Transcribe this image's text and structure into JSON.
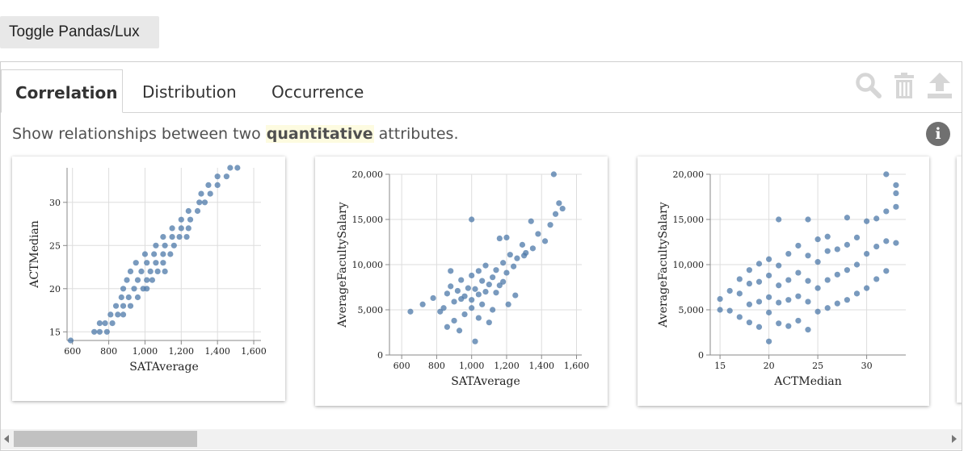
{
  "toggle": {
    "label": "Toggle Pandas/Lux"
  },
  "tabs": [
    {
      "label": "Correlation",
      "active": true
    },
    {
      "label": "Distribution",
      "active": false
    },
    {
      "label": "Occurrence",
      "active": false
    }
  ],
  "toolbar": {
    "icons": [
      "search-icon",
      "trash-icon",
      "export-icon"
    ]
  },
  "description": {
    "before": "Show relationships between two ",
    "highlight": "quantitative",
    "after": " attributes."
  },
  "info": {
    "glyph": "i"
  },
  "colors": {
    "point": "#4c78a8",
    "grid": "#dddddd",
    "axis": "#888888"
  },
  "chart_data": [
    {
      "type": "scatter",
      "xlabel": "SATAverage",
      "ylabel": "ACTMedian",
      "xlim": [
        570,
        1640
      ],
      "ylim": [
        14,
        34
      ],
      "xticks": [
        600,
        800,
        1000,
        1200,
        1400,
        1600
      ],
      "xtick_labels": [
        "600",
        "800",
        "1,000",
        "1,200",
        "1,400",
        "1,600"
      ],
      "yticks": [
        15,
        20,
        25,
        30
      ],
      "ytick_labels": [
        "15",
        "20",
        "25",
        "30"
      ],
      "points": [
        [
          590,
          14
        ],
        [
          720,
          15
        ],
        [
          750,
          15
        ],
        [
          790,
          15
        ],
        [
          750,
          16
        ],
        [
          780,
          16
        ],
        [
          820,
          16
        ],
        [
          810,
          17
        ],
        [
          850,
          17
        ],
        [
          880,
          17
        ],
        [
          840,
          18
        ],
        [
          880,
          18
        ],
        [
          920,
          18
        ],
        [
          870,
          19
        ],
        [
          910,
          19
        ],
        [
          960,
          19
        ],
        [
          880,
          20
        ],
        [
          940,
          20
        ],
        [
          990,
          20
        ],
        [
          1010,
          20
        ],
        [
          900,
          21
        ],
        [
          960,
          21
        ],
        [
          1010,
          21
        ],
        [
          1040,
          21
        ],
        [
          920,
          22
        ],
        [
          980,
          22
        ],
        [
          1030,
          22
        ],
        [
          1070,
          22
        ],
        [
          1110,
          22
        ],
        [
          950,
          23
        ],
        [
          1010,
          23
        ],
        [
          1060,
          23
        ],
        [
          1100,
          23
        ],
        [
          1000,
          24
        ],
        [
          1050,
          24
        ],
        [
          1100,
          24
        ],
        [
          1140,
          24
        ],
        [
          1060,
          25
        ],
        [
          1110,
          25
        ],
        [
          1160,
          25
        ],
        [
          1100,
          26
        ],
        [
          1150,
          26
        ],
        [
          1190,
          26
        ],
        [
          1230,
          26
        ],
        [
          1150,
          27
        ],
        [
          1200,
          27
        ],
        [
          1240,
          27
        ],
        [
          1200,
          28
        ],
        [
          1250,
          28
        ],
        [
          1240,
          29
        ],
        [
          1290,
          29
        ],
        [
          1300,
          30
        ],
        [
          1330,
          30
        ],
        [
          1310,
          31
        ],
        [
          1360,
          31
        ],
        [
          1350,
          32
        ],
        [
          1400,
          32
        ],
        [
          1400,
          33
        ],
        [
          1450,
          33
        ],
        [
          1470,
          34
        ],
        [
          1510,
          34
        ]
      ]
    },
    {
      "type": "scatter",
      "xlabel": "SATAverage",
      "ylabel": "AverageFacultySalary",
      "xlim": [
        530,
        1630
      ],
      "ylim": [
        0,
        20000
      ],
      "xticks": [
        600,
        800,
        1000,
        1200,
        1400,
        1600
      ],
      "xtick_labels": [
        "600",
        "800",
        "1,000",
        "1,200",
        "1,400",
        "1,600"
      ],
      "yticks": [
        0,
        5000,
        10000,
        15000,
        20000
      ],
      "ytick_labels": [
        "0",
        "5,000",
        "10,000",
        "15,000",
        "20,000"
      ],
      "points": [
        [
          650,
          4800
        ],
        [
          720,
          5600
        ],
        [
          780,
          6300
        ],
        [
          840,
          5200
        ],
        [
          860,
          6800
        ],
        [
          880,
          7600
        ],
        [
          900,
          5900
        ],
        [
          920,
          7100
        ],
        [
          940,
          8300
        ],
        [
          960,
          6500
        ],
        [
          980,
          7400
        ],
        [
          1000,
          6100
        ],
        [
          1000,
          8800
        ],
        [
          1020,
          7300
        ],
        [
          1040,
          6700
        ],
        [
          1040,
          9300
        ],
        [
          1060,
          8200
        ],
        [
          1080,
          7000
        ],
        [
          1080,
          9900
        ],
        [
          1100,
          7800
        ],
        [
          1120,
          8600
        ],
        [
          1140,
          9400
        ],
        [
          1160,
          7700
        ],
        [
          1180,
          10200
        ],
        [
          1200,
          9100
        ],
        [
          1220,
          11100
        ],
        [
          1240,
          9800
        ],
        [
          1260,
          10700
        ],
        [
          1290,
          12200
        ],
        [
          1310,
          11300
        ],
        [
          1350,
          11800
        ],
        [
          1380,
          13400
        ],
        [
          1420,
          12600
        ],
        [
          1450,
          14400
        ],
        [
          1480,
          15600
        ],
        [
          1500,
          16800
        ],
        [
          1470,
          20000
        ],
        [
          1520,
          16200
        ],
        [
          1000,
          15000
        ],
        [
          1340,
          14800
        ],
        [
          900,
          3800
        ],
        [
          960,
          4500
        ],
        [
          1040,
          4100
        ],
        [
          1120,
          5000
        ],
        [
          1210,
          5600
        ],
        [
          860,
          3100
        ],
        [
          1020,
          1500
        ],
        [
          930,
          2700
        ],
        [
          1100,
          3600
        ],
        [
          1250,
          6600
        ],
        [
          880,
          9300
        ],
        [
          1160,
          12900
        ],
        [
          1200,
          13000
        ],
        [
          1300,
          11000
        ],
        [
          1000,
          5200
        ],
        [
          1060,
          5600
        ],
        [
          940,
          6200
        ],
        [
          1140,
          6900
        ],
        [
          820,
          4800
        ],
        [
          1180,
          8100
        ]
      ]
    },
    {
      "type": "scatter",
      "xlabel": "ACTMedian",
      "ylabel": "AverageFacultySalary",
      "xlim": [
        14,
        34
      ],
      "ylim": [
        0,
        20000
      ],
      "xticks": [
        15,
        20,
        25,
        30
      ],
      "xtick_labels": [
        "15",
        "20",
        "25",
        "30"
      ],
      "yticks": [
        0,
        5000,
        10000,
        15000,
        20000
      ],
      "ytick_labels": [
        "0",
        "5,000",
        "10,000",
        "15,000",
        "20,000"
      ],
      "points": [
        [
          15,
          5000
        ],
        [
          15,
          6200
        ],
        [
          16,
          4900
        ],
        [
          16,
          7100
        ],
        [
          17,
          4200
        ],
        [
          17,
          6800
        ],
        [
          17,
          8400
        ],
        [
          18,
          3600
        ],
        [
          18,
          5600
        ],
        [
          18,
          7900
        ],
        [
          18,
          9400
        ],
        [
          19,
          3100
        ],
        [
          19,
          5900
        ],
        [
          19,
          8100
        ],
        [
          19,
          10100
        ],
        [
          20,
          1500
        ],
        [
          20,
          4700
        ],
        [
          20,
          6400
        ],
        [
          20,
          8800
        ],
        [
          20,
          10600
        ],
        [
          21,
          3500
        ],
        [
          21,
          5800
        ],
        [
          21,
          7700
        ],
        [
          21,
          9900
        ],
        [
          21,
          15000
        ],
        [
          22,
          3200
        ],
        [
          22,
          6100
        ],
        [
          22,
          8300
        ],
        [
          22,
          11200
        ],
        [
          23,
          3800
        ],
        [
          23,
          6500
        ],
        [
          23,
          9100
        ],
        [
          23,
          12100
        ],
        [
          24,
          2800
        ],
        [
          24,
          5900
        ],
        [
          24,
          8200
        ],
        [
          24,
          11000
        ],
        [
          24,
          15000
        ],
        [
          25,
          4800
        ],
        [
          25,
          7400
        ],
        [
          25,
          10300
        ],
        [
          25,
          12800
        ],
        [
          26,
          5200
        ],
        [
          26,
          8300
        ],
        [
          26,
          11500
        ],
        [
          27,
          5700
        ],
        [
          27,
          8900
        ],
        [
          27,
          11700
        ],
        [
          28,
          6100
        ],
        [
          28,
          9400
        ],
        [
          28,
          12200
        ],
        [
          28,
          15200
        ],
        [
          29,
          6800
        ],
        [
          29,
          10000
        ],
        [
          29,
          13000
        ],
        [
          30,
          7400
        ],
        [
          30,
          11200
        ],
        [
          30,
          14800
        ],
        [
          31,
          8400
        ],
        [
          31,
          12000
        ],
        [
          31,
          15100
        ],
        [
          32,
          9300
        ],
        [
          32,
          12600
        ],
        [
          32,
          15900
        ],
        [
          33,
          12400
        ],
        [
          33,
          16400
        ],
        [
          33,
          17900
        ],
        [
          32,
          20000
        ],
        [
          33,
          18800
        ],
        [
          26,
          13100
        ]
      ]
    }
  ]
}
